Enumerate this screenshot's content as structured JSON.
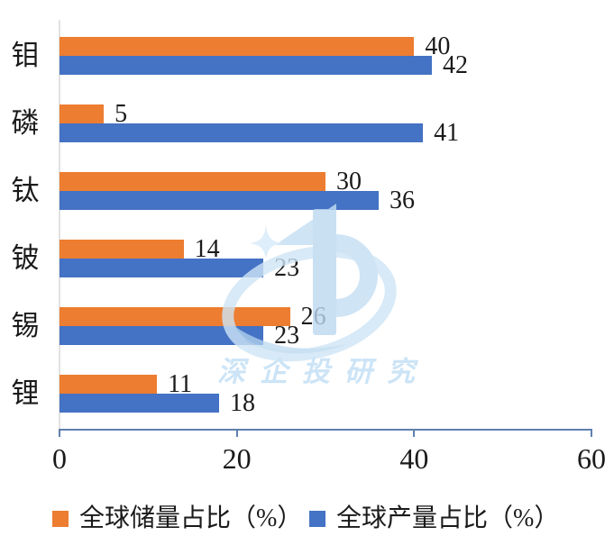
{
  "watermark": {
    "text": "深企投研究",
    "color": "#CCE4F6"
  },
  "chart_data": {
    "type": "bar",
    "orientation": "horizontal",
    "title": "",
    "categories": [
      "钼",
      "磷",
      "钛",
      "铍",
      "锡",
      "锂"
    ],
    "series": [
      {
        "key": "reserve",
        "name": "全球储量占比（%）",
        "color": "#ED7D31",
        "values": [
          40,
          5,
          30,
          14,
          26,
          11
        ]
      },
      {
        "key": "production",
        "name": "全球产量占比（%）",
        "color": "#4472C4",
        "values": [
          42,
          41,
          36,
          23,
          23,
          18
        ]
      }
    ],
    "xlim": [
      0,
      60
    ],
    "xticks": [
      0,
      20,
      40,
      60
    ],
    "value_labels": true,
    "grid": false,
    "legend_position": "bottom",
    "axis_color": "#6080AE",
    "text_color": "#1A1A1A"
  }
}
